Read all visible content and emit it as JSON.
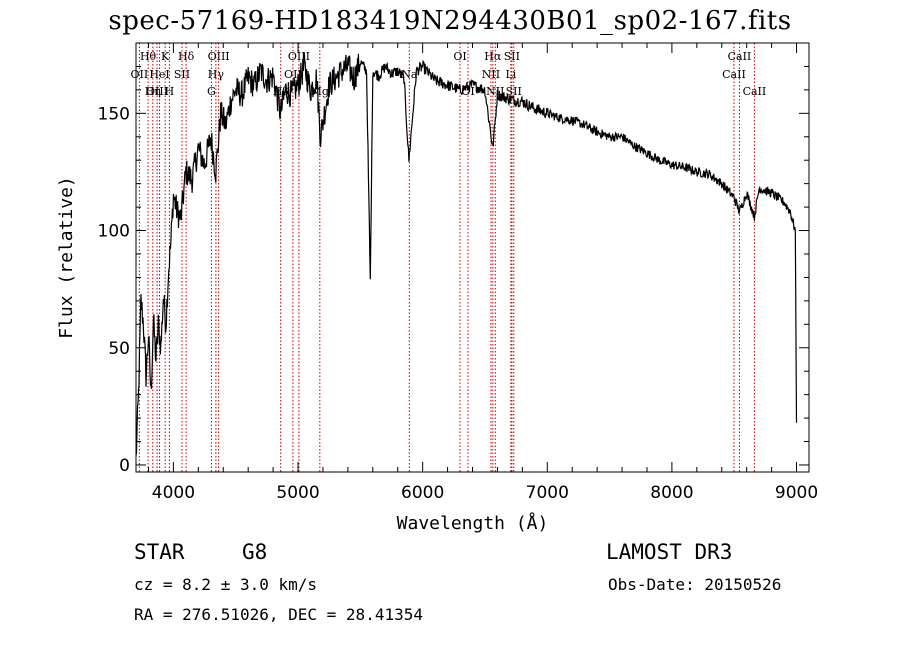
{
  "chart_data": {
    "type": "line",
    "title": "spec-57169-HD183419N294430B01_sp02-167.fits",
    "xlabel": "Wavelength (Å)",
    "ylabel": "Flux (relative)",
    "xlim": [
      3700,
      9100
    ],
    "ylim": [
      -3,
      180
    ],
    "xticks": [
      4000,
      5000,
      6000,
      7000,
      8000,
      9000
    ],
    "yticks": [
      0,
      50,
      100,
      150
    ],
    "series": [
      {
        "name": "spectrum",
        "x": [
          3700,
          3720,
          3740,
          3760,
          3780,
          3800,
          3820,
          3840,
          3860,
          3880,
          3900,
          3920,
          3940,
          3960,
          3980,
          4000,
          4030,
          4060,
          4100,
          4150,
          4200,
          4250,
          4300,
          4340,
          4380,
          4420,
          4460,
          4500,
          4550,
          4600,
          4650,
          4700,
          4750,
          4800,
          4860,
          4900,
          4950,
          5000,
          5050,
          5100,
          5150,
          5180,
          5250,
          5300,
          5350,
          5400,
          5450,
          5500,
          5550,
          5580,
          5600,
          5650,
          5700,
          5750,
          5800,
          5850,
          5890,
          5950,
          6000,
          6100,
          6200,
          6300,
          6400,
          6500,
          6563,
          6600,
          6700,
          6800,
          6900,
          7000,
          7100,
          7200,
          7300,
          7400,
          7500,
          7600,
          7700,
          7800,
          7900,
          8000,
          8100,
          8200,
          8300,
          8400,
          8500,
          8542,
          8600,
          8662,
          8700,
          8800,
          8900,
          8950,
          8990,
          9000
        ],
        "y": [
          2,
          30,
          70,
          60,
          38,
          55,
          30,
          62,
          45,
          60,
          50,
          72,
          60,
          82,
          95,
          115,
          108,
          105,
          125,
          122,
          135,
          128,
          140,
          125,
          150,
          145,
          155,
          160,
          158,
          165,
          162,
          168,
          164,
          166,
          150,
          160,
          158,
          162,
          170,
          160,
          165,
          140,
          162,
          165,
          168,
          170,
          165,
          172,
          168,
          78,
          168,
          166,
          170,
          167,
          168,
          165,
          130,
          168,
          170,
          164,
          162,
          160,
          162,
          160,
          135,
          158,
          156,
          155,
          152,
          150,
          148,
          147,
          145,
          142,
          140,
          140,
          136,
          133,
          130,
          128,
          127,
          125,
          124,
          120,
          114,
          108,
          116,
          106,
          118,
          116,
          112,
          108,
          100,
          18
        ]
      }
    ],
    "line_marks": [
      {
        "label": "Hθ",
        "x": 3797,
        "row": 0
      },
      {
        "label": "OII",
        "x": 3727,
        "row": 1
      },
      {
        "label": "OIII",
        "x": 3869,
        "row": 2
      },
      {
        "label": "K",
        "x": 3934,
        "row": 0
      },
      {
        "label": "HeI",
        "x": 3889,
        "row": 1
      },
      {
        "label": "Hη",
        "x": 3835,
        "row": 2
      },
      {
        "label": "Hδ",
        "x": 4102,
        "row": 0
      },
      {
        "label": "SII",
        "x": 4069,
        "row": 1
      },
      {
        "label": "H",
        "x": 3968,
        "row": 2
      },
      {
        "label": "OIII",
        "x": 4363,
        "row": 0
      },
      {
        "label": "Hγ",
        "x": 4341,
        "row": 1
      },
      {
        "label": "G",
        "x": 4305,
        "row": 2
      },
      {
        "label": "OIII",
        "x": 5007,
        "row": 0
      },
      {
        "label": "OII",
        "x": 4959,
        "row": 1
      },
      {
        "label": "Hβ",
        "x": 4861,
        "row": 2
      },
      {
        "label": "Mg",
        "x": 5175,
        "row": 2
      },
      {
        "label": "Na",
        "x": 5893,
        "row": 1
      },
      {
        "label": "OI",
        "x": 6300,
        "row": 0
      },
      {
        "label": "OI",
        "x": 6364,
        "row": 2
      },
      {
        "label": "Hα",
        "x": 6563,
        "row": 0
      },
      {
        "label": "SII",
        "x": 6716,
        "row": 0
      },
      {
        "label": "NII",
        "x": 6548,
        "row": 1
      },
      {
        "label": "Li",
        "x": 6708,
        "row": 1
      },
      {
        "label": "NII",
        "x": 6583,
        "row": 2
      },
      {
        "label": "SII",
        "x": 6731,
        "row": 2
      },
      {
        "label": "CaII",
        "x": 8542,
        "row": 0
      },
      {
        "label": "CaII",
        "x": 8498,
        "row": 1
      },
      {
        "label": "CaII",
        "x": 8662,
        "row": 2
      }
    ]
  },
  "info": {
    "object_type": "STAR",
    "subclass": "G8",
    "survey": "LAMOST DR3",
    "cz": "cz = 8.2 ± 3.0 km/s",
    "obs_date": "Obs-Date: 20150526",
    "coords": "RA = 276.51026, DEC =  28.41354"
  }
}
